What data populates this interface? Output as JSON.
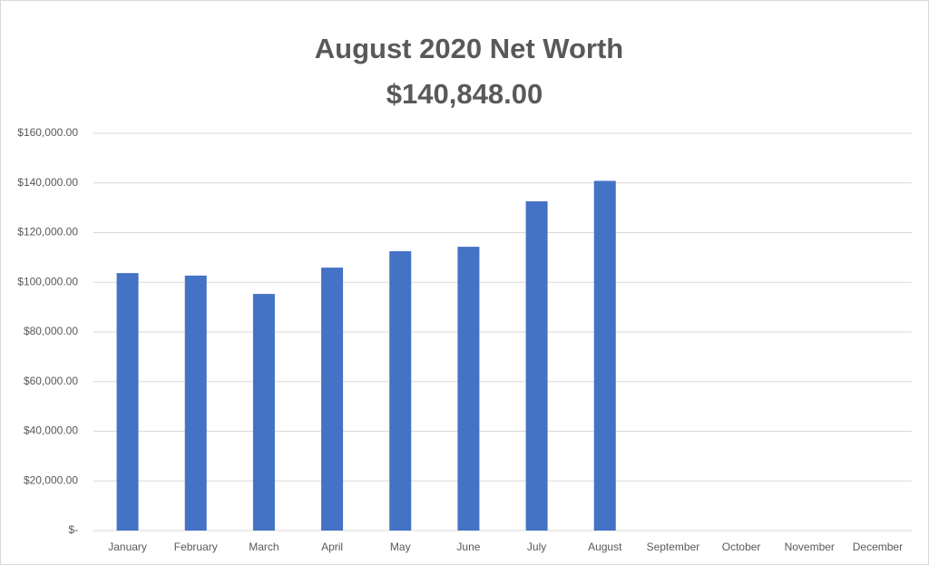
{
  "chart_data": {
    "type": "bar",
    "title": "August 2020 Net Worth",
    "subtitle": "$140,848.00",
    "categories": [
      "January",
      "February",
      "March",
      "April",
      "May",
      "June",
      "July",
      "August",
      "September",
      "October",
      "November",
      "December"
    ],
    "values": [
      103700,
      102700,
      95300,
      105900,
      112500,
      114300,
      132600,
      140848,
      null,
      null,
      null,
      null
    ],
    "color": "#4472c4",
    "ylim": [
      0,
      160000
    ],
    "yticks": [
      {
        "value": 0,
        "label": "$-"
      },
      {
        "value": 20000,
        "label": "$20,000.00"
      },
      {
        "value": 40000,
        "label": "$40,000.00"
      },
      {
        "value": 60000,
        "label": "$60,000.00"
      },
      {
        "value": 80000,
        "label": "$80,000.00"
      },
      {
        "value": 100000,
        "label": "$100,000.00"
      },
      {
        "value": 120000,
        "label": "$120,000.00"
      },
      {
        "value": 140000,
        "label": "$140,000.00"
      },
      {
        "value": 160000,
        "label": "$160,000.00"
      }
    ],
    "grid": true
  }
}
